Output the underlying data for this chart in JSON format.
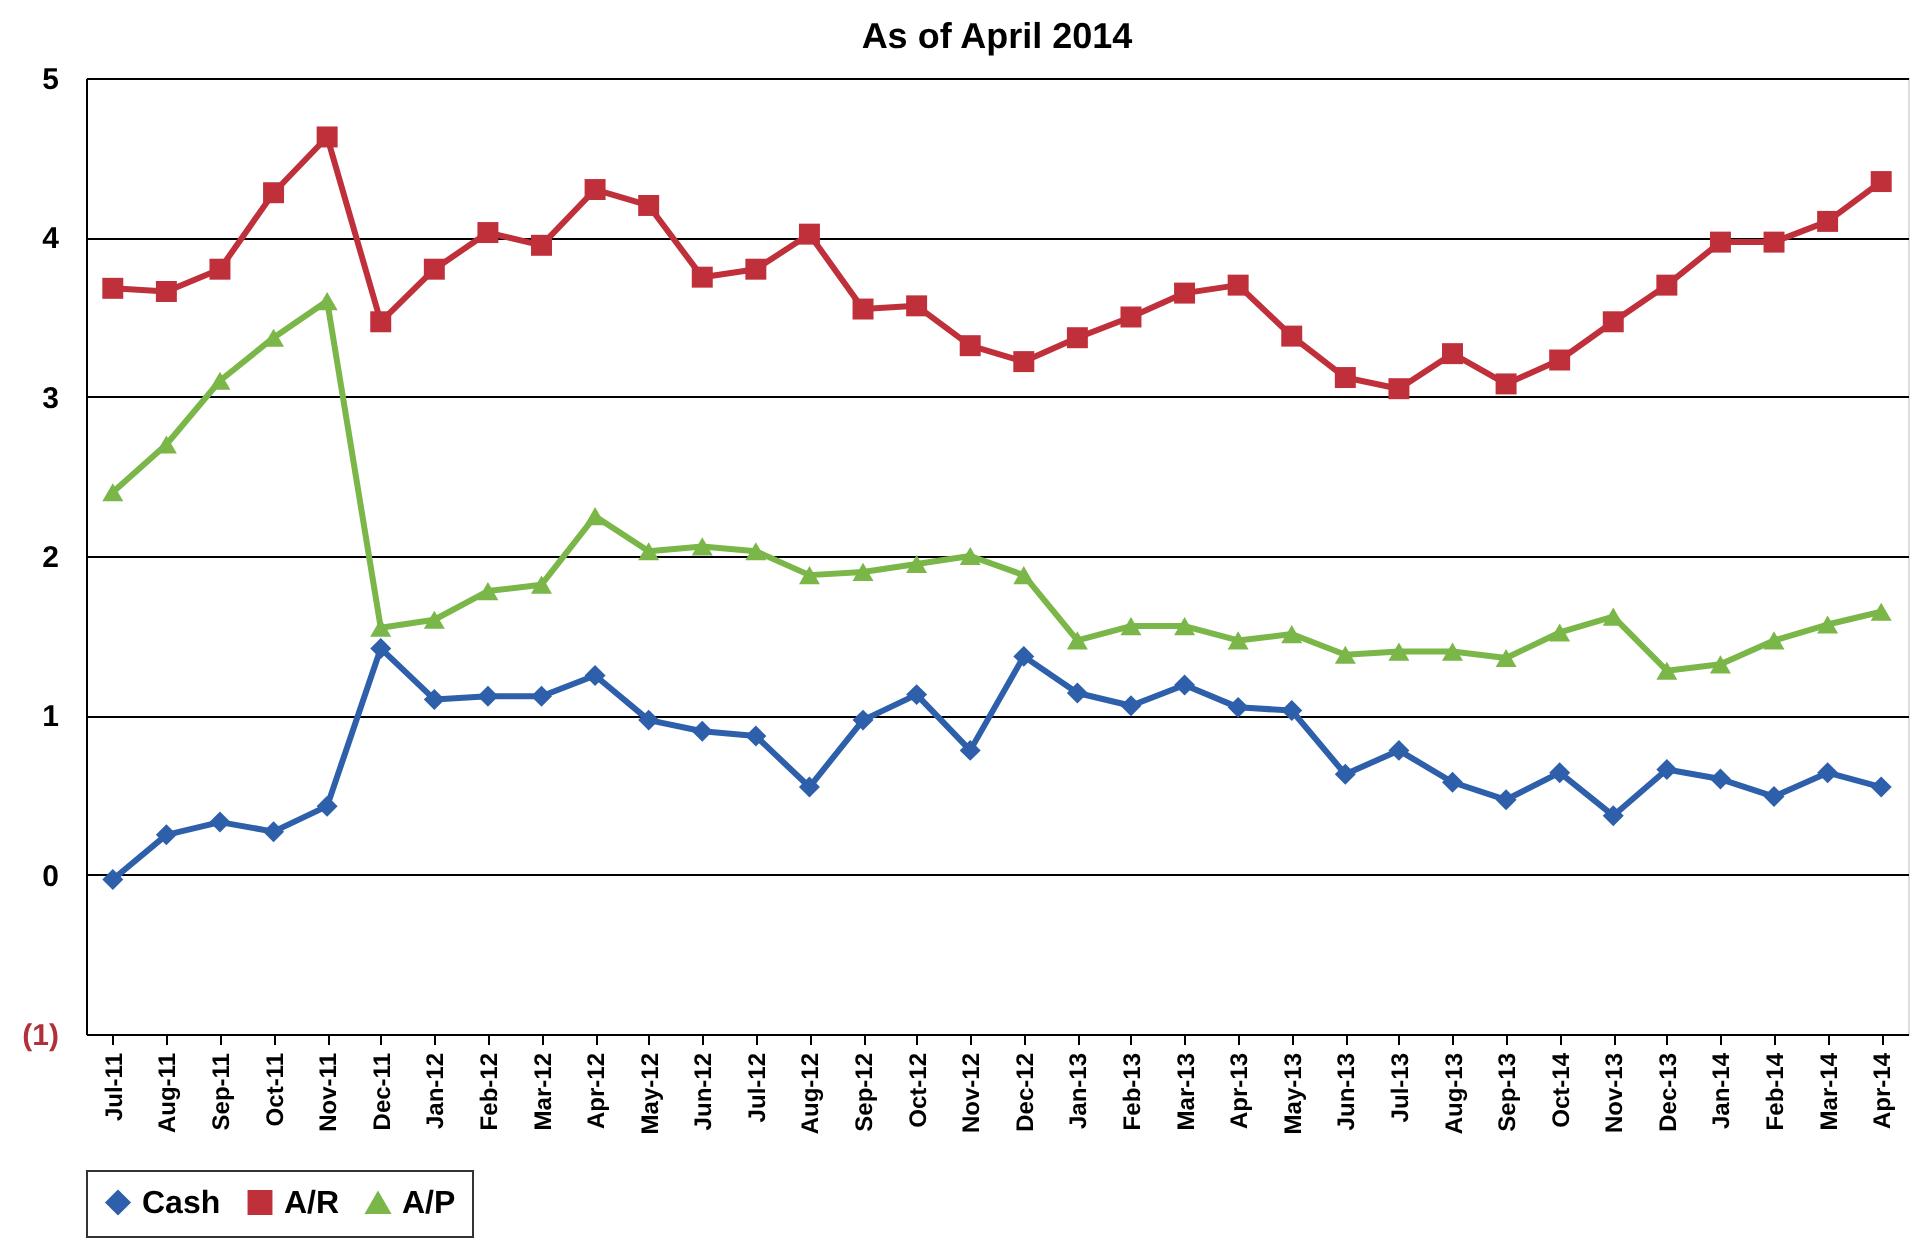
{
  "chart_data": {
    "type": "line",
    "title": "As of April 2014",
    "categories": [
      "Jul-11",
      "Aug-11",
      "Sep-11",
      "Oct-11",
      "Nov-11",
      "Dec-11",
      "Jan-12",
      "Feb-12",
      "Mar-12",
      "Apr-12",
      "May-12",
      "Jun-12",
      "Jul-12",
      "Aug-12",
      "Sep-12",
      "Oct-12",
      "Nov-12",
      "Dec-12",
      "Jan-13",
      "Feb-13",
      "Mar-13",
      "Apr-13",
      "May-13",
      "Jun-13",
      "Jul-13",
      "Aug-13",
      "Sep-13",
      "Oct-14",
      "Nov-13",
      "Dec-13",
      "Jan-14",
      "Feb-14",
      "Mar-14",
      "Apr-14"
    ],
    "series": [
      {
        "name": "Cash",
        "color": "#2e5faa",
        "marker": "diamond",
        "values": [
          -0.03,
          0.25,
          0.33,
          0.27,
          0.43,
          1.42,
          1.1,
          1.12,
          1.12,
          1.25,
          0.97,
          0.9,
          0.87,
          0.55,
          0.97,
          1.13,
          0.78,
          1.37,
          1.14,
          1.06,
          1.19,
          1.05,
          1.03,
          0.63,
          0.78,
          0.58,
          0.47,
          0.64,
          0.37,
          0.66,
          0.6,
          0.49,
          0.64,
          0.55
        ]
      },
      {
        "name": "A/R",
        "color": "#c0303b",
        "marker": "square",
        "values": [
          3.68,
          3.66,
          3.8,
          4.28,
          4.63,
          3.47,
          3.8,
          4.03,
          3.95,
          4.3,
          4.2,
          3.75,
          3.8,
          4.02,
          3.55,
          3.57,
          3.32,
          3.22,
          3.37,
          3.5,
          3.65,
          3.7,
          3.38,
          3.12,
          3.05,
          3.27,
          3.08,
          3.23,
          3.47,
          3.7,
          3.97,
          3.97,
          4.1,
          4.35
        ]
      },
      {
        "name": "A/P",
        "color": "#7ab648",
        "marker": "triangle",
        "values": [
          2.4,
          2.7,
          3.1,
          3.37,
          3.6,
          1.55,
          1.6,
          1.78,
          1.82,
          2.25,
          2.03,
          2.06,
          2.03,
          1.88,
          1.9,
          1.95,
          2.0,
          1.88,
          1.47,
          1.56,
          1.56,
          1.47,
          1.51,
          1.38,
          1.4,
          1.4,
          1.36,
          1.52,
          1.62,
          1.28,
          1.32,
          1.47,
          1.57,
          1.65
        ]
      }
    ],
    "ylim": [
      -1,
      5
    ],
    "yticks": [
      {
        "value": -1,
        "label": "(1)"
      },
      0,
      1,
      2,
      3,
      4,
      5
    ],
    "grid": "y",
    "legend": "bottom",
    "line_style": "solid"
  }
}
